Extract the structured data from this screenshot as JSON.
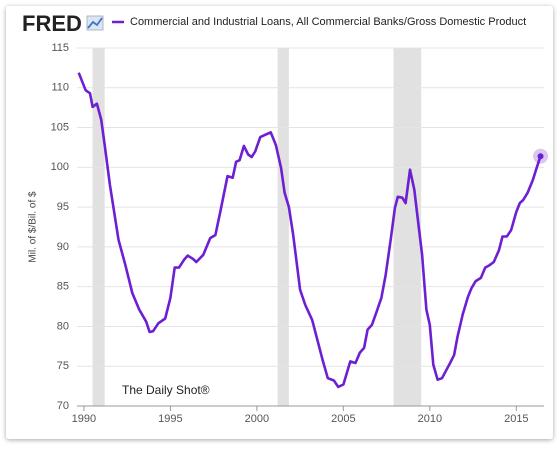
{
  "brand": "FRED",
  "chart_data": {
    "type": "line",
    "y_label": "Mil. of $/Bil. of $",
    "annotation": "The Daily Shot®",
    "xlim": [
      1989.6,
      2016.6
    ],
    "xticks": [
      1990,
      1995,
      2000,
      2005,
      2010,
      2015
    ],
    "ylim": [
      70,
      115
    ],
    "yticks": [
      70,
      75,
      80,
      85,
      90,
      95,
      100,
      105,
      110,
      115
    ],
    "grid": true,
    "recessions": [
      [
        1990.5,
        1991.2
      ],
      [
        2001.2,
        2001.85
      ],
      [
        2007.9,
        2009.5
      ]
    ],
    "recession_color": "#e1e1e1",
    "highlight_last": true,
    "x": [
      1989.7,
      1990.1,
      1990.35,
      1990.5,
      1990.75,
      1991.0,
      1991.2,
      1991.5,
      1992.0,
      1992.4,
      1992.8,
      1993.2,
      1993.6,
      1993.8,
      1994.0,
      1994.3,
      1994.7,
      1995.0,
      1995.25,
      1995.5,
      1995.8,
      1996.0,
      1996.3,
      1996.5,
      1996.9,
      1997.3,
      1997.6,
      1997.9,
      1998.3,
      1998.6,
      1998.8,
      1999.0,
      1999.25,
      1999.5,
      1999.7,
      1999.9,
      2000.2,
      2000.5,
      2000.8,
      2001.1,
      2001.4,
      2001.6,
      2001.85,
      2002.1,
      2002.5,
      2002.8,
      2003.2,
      2003.5,
      2003.8,
      2004.1,
      2004.45,
      2004.7,
      2005.0,
      2005.4,
      2005.7,
      2005.95,
      2006.2,
      2006.4,
      2006.65,
      2006.9,
      2007.2,
      2007.45,
      2007.75,
      2007.98,
      2008.15,
      2008.4,
      2008.6,
      2008.85,
      2009.1,
      2009.3,
      2009.55,
      2009.8,
      2010.0,
      2010.2,
      2010.45,
      2010.7,
      2010.9,
      2011.15,
      2011.4,
      2011.6,
      2011.9,
      2012.2,
      2012.4,
      2012.65,
      2012.95,
      2013.2,
      2013.45,
      2013.7,
      2014.0,
      2014.2,
      2014.45,
      2014.7,
      2015.0,
      2015.2,
      2015.4,
      2015.65,
      2015.95,
      2016.2,
      2016.4
    ],
    "series": [
      {
        "name": "Commercial and Industrial Loans, All Commercial Banks/Gross Domestic Product",
        "color": "#6d1fd2",
        "values": [
          111.9,
          109.7,
          109.3,
          107.6,
          108.0,
          106.0,
          102.8,
          97.8,
          90.9,
          87.7,
          84.2,
          82.1,
          80.6,
          79.3,
          79.4,
          80.4,
          81.0,
          83.6,
          87.4,
          87.4,
          88.4,
          88.9,
          88.5,
          88.1,
          89.0,
          91.1,
          91.5,
          94.6,
          98.9,
          98.7,
          100.7,
          100.9,
          102.7,
          101.6,
          101.3,
          102.0,
          103.8,
          104.1,
          104.4,
          102.8,
          99.9,
          96.8,
          95.0,
          91.5,
          84.6,
          82.7,
          80.8,
          78.3,
          75.8,
          73.5,
          73.2,
          72.4,
          72.7,
          75.6,
          75.4,
          76.7,
          77.3,
          79.6,
          80.2,
          81.7,
          83.6,
          86.5,
          91.1,
          94.9,
          96.3,
          96.2,
          95.5,
          99.7,
          97.2,
          93.6,
          89.0,
          82.1,
          80.2,
          75.2,
          73.3,
          73.5,
          74.3,
          75.3,
          76.4,
          78.7,
          81.5,
          83.7,
          84.8,
          85.7,
          86.1,
          87.4,
          87.7,
          88.1,
          89.6,
          91.3,
          91.3,
          92.1,
          94.4,
          95.5,
          95.9,
          96.8,
          98.4,
          100.1,
          101.4
        ]
      }
    ]
  }
}
